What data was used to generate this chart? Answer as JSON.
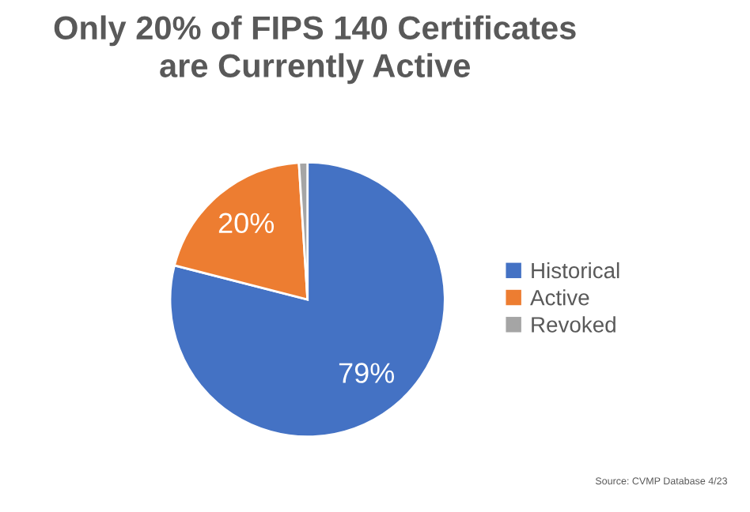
{
  "chart_data": {
    "type": "pie",
    "title": "Only 20% of FIPS 140 Certificates\nare Currently Active",
    "categories": [
      "Historical",
      "Active",
      "Revoked"
    ],
    "values": [
      79,
      20,
      1
    ],
    "colors": [
      "#4472c4",
      "#ed7d31",
      "#a5a5a5"
    ],
    "value_labels": [
      "79%",
      "20%",
      null
    ],
    "legend": "right",
    "annotations": [
      "Source: CVMP Database 4/23"
    ]
  }
}
